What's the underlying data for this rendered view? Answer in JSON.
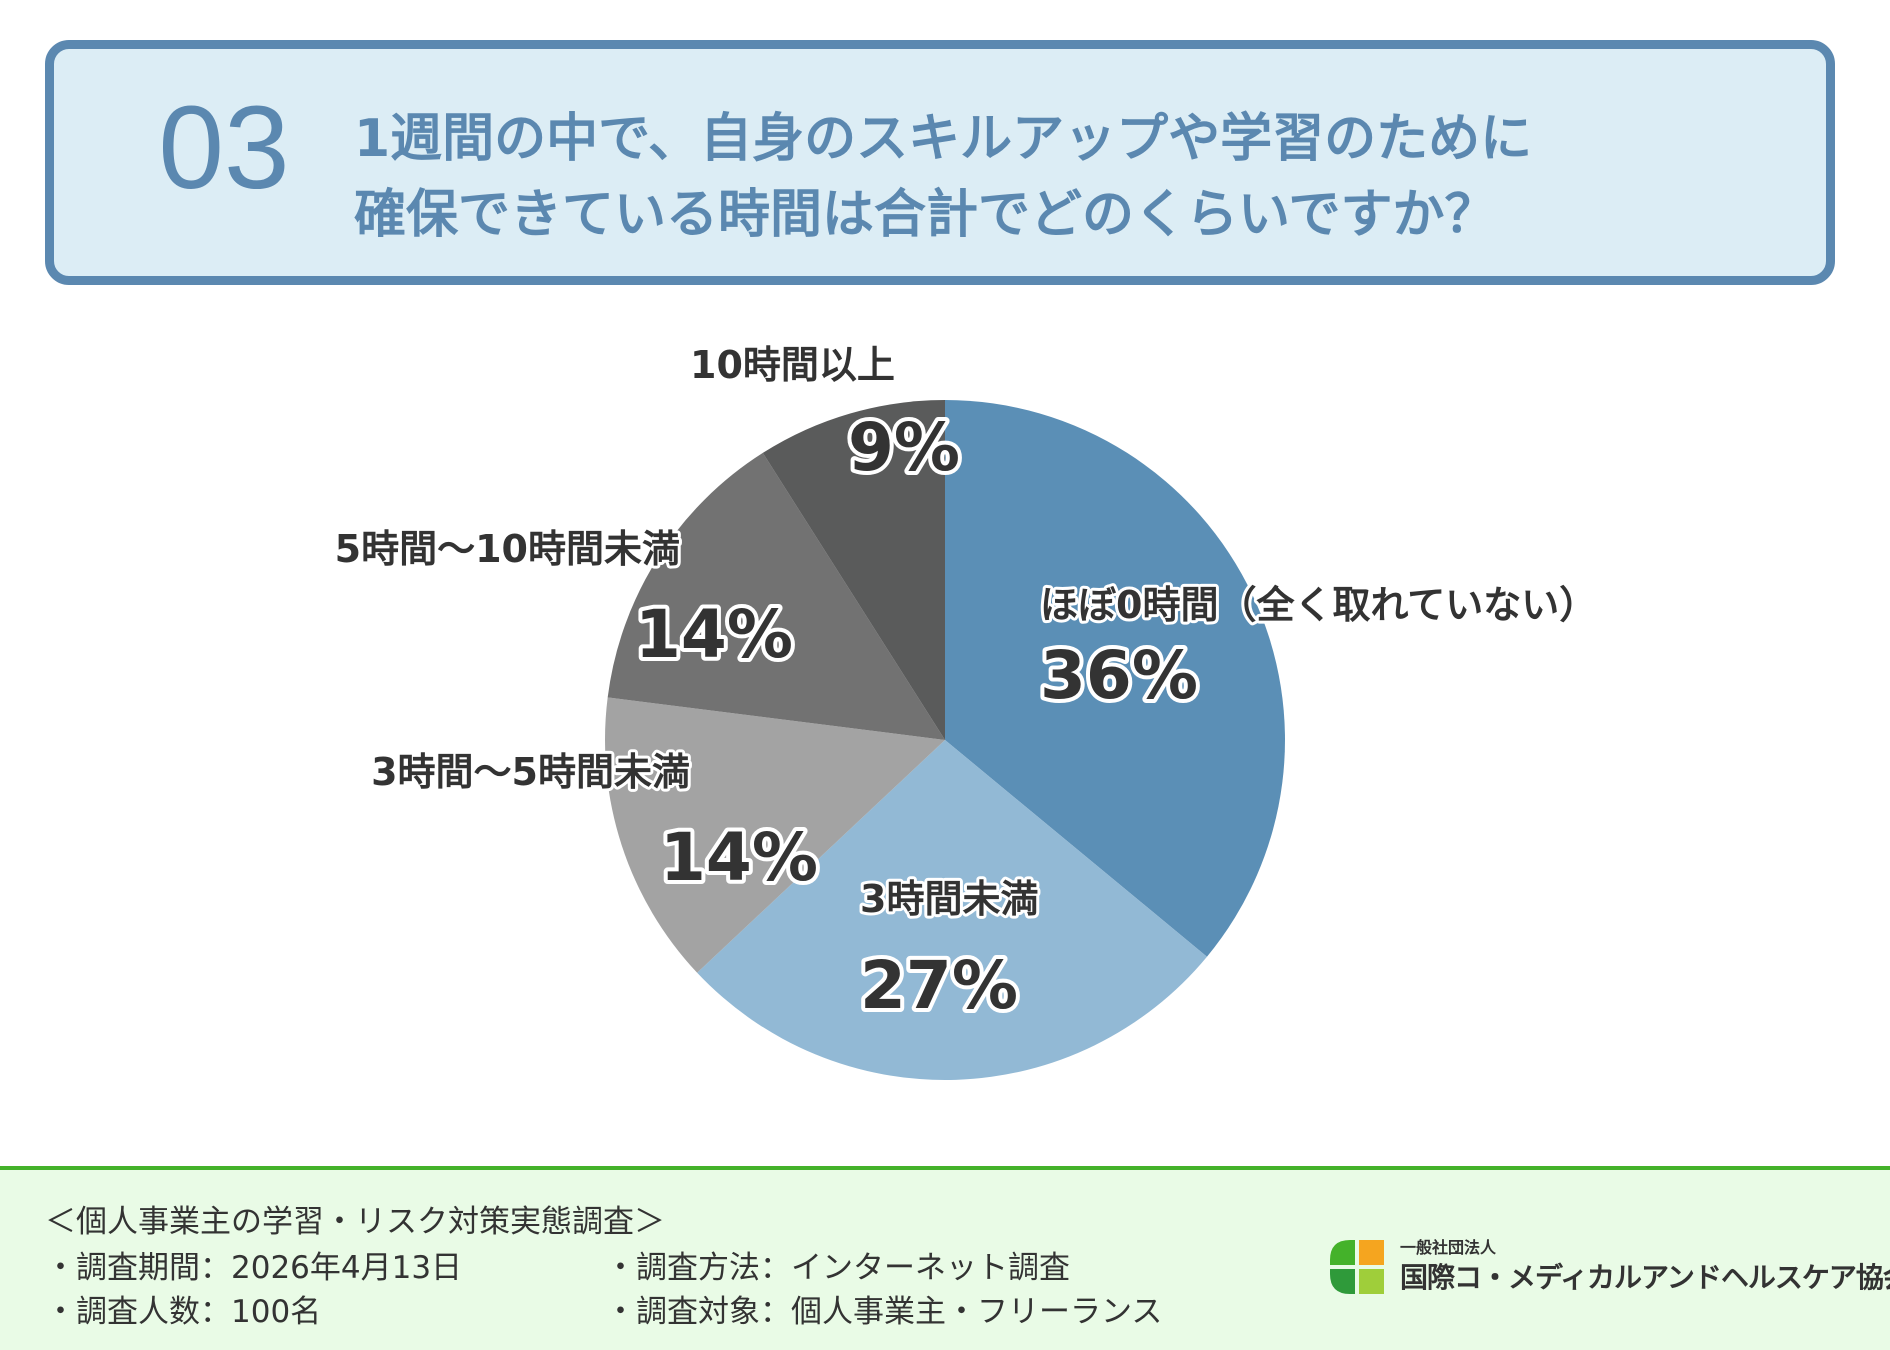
{
  "header": {
    "number": "03",
    "question_line1": "1週間の中で、自身のスキルアップや学習のために",
    "question_line2": "確保できている時間は合計でどのくらいですか？"
  },
  "colors": {
    "accent": "#5b88b0",
    "header_bg": "#dcedf5",
    "footer_bg": "#e9fbe6",
    "footer_line": "#44b22a"
  },
  "chart_data": {
    "type": "pie",
    "title": "1週間の中で、自身のスキルアップや学習のために確保できている時間は合計でどのくらいですか？",
    "slices": [
      {
        "label": "ほぼ0時間（全く取れていない）",
        "value": 36,
        "display": "36%",
        "color": "#5b8fb6"
      },
      {
        "label": "3時間未満",
        "value": 27,
        "display": "27%",
        "color": "#92b9d5"
      },
      {
        "label": "3時間〜5時間未満",
        "value": 14,
        "display": "14%",
        "color": "#a3a3a3"
      },
      {
        "label": "5時間〜10時間未満",
        "value": 14,
        "display": "14%",
        "color": "#727272"
      },
      {
        "label": "10時間以上",
        "value": 9,
        "display": "9%",
        "color": "#5a5b5b"
      }
    ]
  },
  "footer": {
    "survey_title": "＜個人事業主の学習・リスク対策実態調査＞",
    "period": "・調査期間：2026年4月13日",
    "method": "・調査方法：インターネット調査",
    "respondents": "・調査人数：100名",
    "target": "・調査対象：個人事業主・フリーランス",
    "logo_small": "一般社団法人",
    "logo_main": "国際コ・メディカルアンドヘルスケア協会",
    "logo_colors": [
      "#f5a51f",
      "#44b22a",
      "#9fce3a",
      "#2f9a3a"
    ]
  }
}
